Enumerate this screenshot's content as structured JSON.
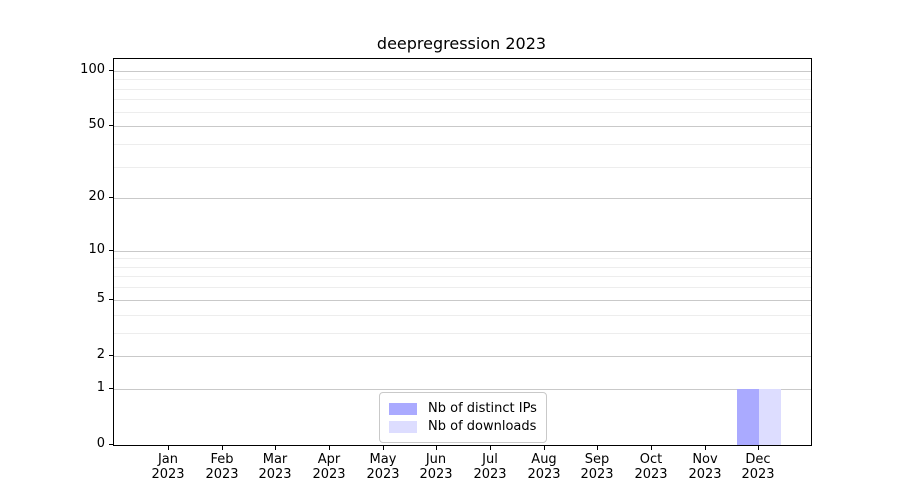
{
  "title": "deepregression 2023",
  "chart_data": {
    "type": "bar",
    "title": "deepregression 2023",
    "y_scale": "log1p",
    "categories": [
      "Jan",
      "Feb",
      "Mar",
      "Apr",
      "May",
      "Jun",
      "Jul",
      "Aug",
      "Sep",
      "Oct",
      "Nov",
      "Dec"
    ],
    "category_year": "2023",
    "series": [
      {
        "name": "Nb of distinct IPs",
        "color": "#aaaaff",
        "values": [
          0,
          0,
          0,
          0,
          0,
          0,
          0,
          0,
          0,
          0,
          0,
          1
        ]
      },
      {
        "name": "Nb of downloads",
        "color": "#ddddff",
        "values": [
          0,
          0,
          0,
          0,
          0,
          0,
          0,
          0,
          0,
          0,
          0,
          1
        ]
      }
    ],
    "y_ticks": [
      0,
      1,
      2,
      5,
      10,
      20,
      50,
      100
    ],
    "y_minor_ticks": [
      3,
      4,
      6,
      7,
      8,
      9,
      30,
      40,
      60,
      70,
      80,
      90
    ],
    "ylim": [
      0,
      116
    ],
    "grid": true,
    "legend_position": "bottom-center"
  },
  "colors": {
    "major_grid": "#c9c9c9",
    "minor_grid": "#ededed",
    "axis": "#000000",
    "legend_border": "#c9c9c9"
  }
}
